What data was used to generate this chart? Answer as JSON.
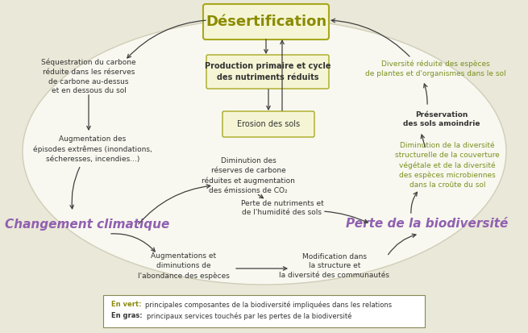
{
  "bg_color": "#eae8d8",
  "ellipse_face": "#f8f8f0",
  "ellipse_edge": "#d0cdb8",
  "box_face": "#f5f5d5",
  "box_edge": "#a8a820",
  "title_text": "Désertification",
  "title_color": "#8b8b00",
  "title_fontsize": 13,
  "climate_text": "Changement climatique",
  "climate_color": "#9060b0",
  "climate_fontsize": 11,
  "biodiv_text": "Perte de la biodiversité",
  "biodiv_color": "#9060b0",
  "biodiv_fontsize": 11,
  "box1_text": "Production primaire et cycle\ndes nutriments réduits",
  "box2_text": "Erosion des sols",
  "arrow_color": "#404040",
  "dark_text_color": "#333333",
  "green_text_color": "#7a9020",
  "legend_green": "#8b8b10",
  "ann_fontsize": 6.5
}
